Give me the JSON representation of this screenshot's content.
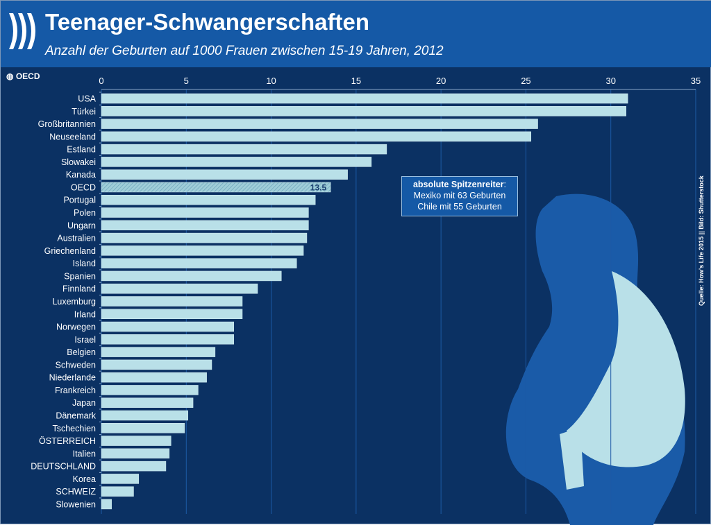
{
  "header": {
    "title": "Teenager-Schwangerschaften",
    "subtitle": "Anzahl der Geburten auf 1000 Frauen zwischen 15-19 Jahren, 2012"
  },
  "logo_text": "OECD",
  "source": "Quelle: How's Life 2015 || Bild: Shutterstock",
  "annotation": {
    "title": "absolute Spitzenreiter",
    "line1": "Mexiko  mit 63 Geburten",
    "line2": "Chile mit 55 Geburten"
  },
  "colors": {
    "header": "#1559a6",
    "background": "#0b3163",
    "bar": "#b9e0e8",
    "silhouette": "#1a5ba8",
    "bag": "#b9e0e8"
  },
  "chart_data": {
    "type": "bar",
    "orientation": "horizontal",
    "title": "Teenager-Schwangerschaften",
    "subtitle": "Anzahl der Geburten auf 1000 Frauen zwischen 15-19 Jahren, 2012",
    "xlim": [
      0,
      35
    ],
    "ticks": [
      "0",
      "5",
      "10",
      "15",
      "20",
      "25",
      "30",
      "35"
    ],
    "grid": true,
    "categories": [
      "USA",
      "Türkei",
      "Großbritannien",
      "Neuseeland",
      "Estland",
      "Slowakei",
      "Kanada",
      "OECD",
      "Portugal",
      "Polen",
      "Ungarn",
      "Australien",
      "Griechenland",
      "Island",
      "Spanien",
      "Finnland",
      "Luxemburg",
      "Irland",
      "Norwegen",
      "Israel",
      "Belgien",
      "Schweden",
      "Niederlande",
      "Frankreich",
      "Japan",
      "Dänemark",
      "Tschechien",
      "ÖSTERREICH",
      "Italien",
      "DEUTSCHLAND",
      "Korea",
      "SCHWEIZ",
      "Slowenien"
    ],
    "values": [
      31.0,
      30.9,
      25.7,
      25.3,
      16.8,
      15.9,
      14.5,
      13.5,
      12.6,
      12.2,
      12.2,
      12.1,
      11.9,
      11.5,
      10.6,
      9.2,
      8.3,
      8.3,
      7.8,
      7.8,
      6.7,
      6.5,
      6.2,
      5.7,
      5.4,
      5.1,
      4.9,
      4.1,
      4.0,
      3.8,
      2.2,
      1.9,
      0.6
    ],
    "highlight": {
      "category": "OECD",
      "label": "13.5"
    }
  }
}
